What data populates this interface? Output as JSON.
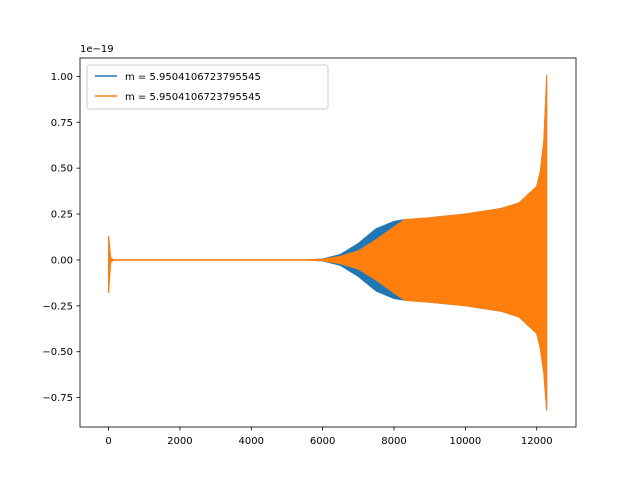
{
  "chart_data": {
    "type": "line",
    "title": "",
    "xlabel": "",
    "ylabel": "",
    "offset_label": "1e−19",
    "xlim": [
      -800,
      13100
    ],
    "ylim": [
      -0.91,
      1.1
    ],
    "x_ticks": [
      0,
      2000,
      4000,
      6000,
      8000,
      10000,
      12000
    ],
    "x_tick_labels": [
      "0",
      "2000",
      "4000",
      "6000",
      "8000",
      "10000",
      "12000"
    ],
    "y_ticks": [
      -0.75,
      -0.5,
      -0.25,
      0.0,
      0.25,
      0.5,
      0.75,
      1.0
    ],
    "y_tick_labels": [
      "−0.75",
      "−0.50",
      "−0.25",
      "0.00",
      "0.25",
      "0.50",
      "0.75",
      "1.00"
    ],
    "grid": false,
    "legend_position": "upper-left",
    "series": [
      {
        "name": "m = 5.9504106723795545",
        "color": "#1f77b4",
        "envelope": {
          "x": [
            0,
            60,
            150,
            600,
            5500,
            6000,
            6500,
            7000,
            7500,
            8000,
            8300,
            9000,
            10000,
            11000,
            11500,
            12000,
            12100,
            12200,
            12280
          ],
          "upper": [
            0.13,
            0.01,
            0.0,
            0.0,
            0.0,
            0.005,
            0.03,
            0.09,
            0.17,
            0.21,
            0.22,
            0.23,
            0.25,
            0.28,
            0.31,
            0.4,
            0.48,
            0.65,
            1.0
          ],
          "lower": [
            -0.18,
            -0.01,
            0.0,
            0.0,
            0.0,
            -0.005,
            -0.03,
            -0.09,
            -0.17,
            -0.21,
            -0.22,
            -0.23,
            -0.25,
            -0.28,
            -0.31,
            -0.4,
            -0.48,
            -0.62,
            -0.82
          ]
        }
      },
      {
        "name": "m = 5.9504106723795545",
        "color": "#ff7f0e",
        "envelope": {
          "x": [
            0,
            60,
            150,
            600,
            5500,
            6000,
            6500,
            7000,
            7500,
            8000,
            8300,
            9000,
            10000,
            11000,
            11500,
            12000,
            12100,
            12200,
            12280
          ],
          "upper": [
            0.13,
            0.01,
            0.0,
            0.0,
            0.0,
            0.004,
            0.02,
            0.05,
            0.11,
            0.18,
            0.22,
            0.23,
            0.25,
            0.28,
            0.31,
            0.4,
            0.48,
            0.65,
            1.01
          ],
          "lower": [
            -0.18,
            -0.01,
            0.0,
            0.0,
            0.0,
            -0.004,
            -0.02,
            -0.05,
            -0.11,
            -0.18,
            -0.22,
            -0.23,
            -0.25,
            -0.28,
            -0.31,
            -0.4,
            -0.48,
            -0.62,
            -0.82
          ]
        }
      }
    ]
  }
}
